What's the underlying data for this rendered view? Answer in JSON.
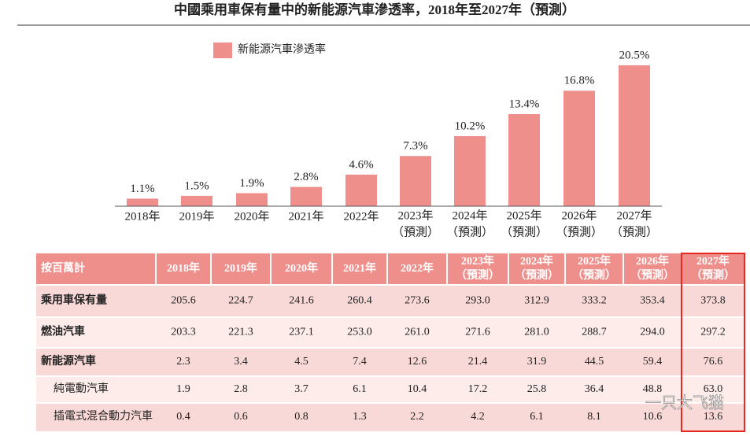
{
  "chart_data": {
    "type": "bar",
    "title": "中國乘用車保有量中的新能源汽車滲透率，2018年至2027年（預測）",
    "legend": "新能源汽車滲透率",
    "categories": [
      "2018年",
      "2019年",
      "2020年",
      "2021年",
      "2022年",
      "2023年\n（預測）",
      "2024年\n（預測）",
      "2025年\n（預測）",
      "2026年\n（預測）",
      "2027年\n（預測）"
    ],
    "values": [
      1.1,
      1.5,
      1.9,
      2.8,
      4.6,
      7.3,
      10.2,
      13.4,
      16.8,
      20.5
    ],
    "value_labels": [
      "1.1%",
      "1.5%",
      "1.9%",
      "2.8%",
      "4.6%",
      "7.3%",
      "10.2%",
      "13.4%",
      "16.8%",
      "20.5%"
    ],
    "color": "#ef8f8c"
  },
  "table": {
    "header": [
      "按百萬計",
      "2018年",
      "2019年",
      "2020年",
      "2021年",
      "2022年",
      "2023年\n（預測）",
      "2024年\n（預測）",
      "2025年\n（預測）",
      "2026年\n（預測）",
      "2027年\n（預測）"
    ],
    "rows": [
      [
        "乘用車保有量",
        "205.6",
        "224.7",
        "241.6",
        "260.4",
        "273.6",
        "293.0",
        "312.9",
        "333.2",
        "353.4",
        "373.8"
      ],
      [
        "燃油汽車",
        "203.3",
        "221.3",
        "237.1",
        "253.0",
        "261.0",
        "271.6",
        "281.0",
        "288.7",
        "294.0",
        "297.2"
      ],
      [
        "新能源汽車",
        "2.3",
        "3.4",
        "4.5",
        "7.4",
        "12.6",
        "21.4",
        "31.9",
        "44.5",
        "59.4",
        "76.6"
      ],
      [
        "純電動汽車",
        "1.9",
        "2.8",
        "3.7",
        "6.1",
        "10.4",
        "17.2",
        "25.8",
        "36.4",
        "48.8",
        "63.0"
      ],
      [
        "插電式混合動力汽車",
        "0.4",
        "0.6",
        "0.8",
        "1.3",
        "2.2",
        "4.2",
        "6.1",
        "8.1",
        "10.6",
        "13.6"
      ]
    ]
  },
  "watermark": "一只大飞猫"
}
